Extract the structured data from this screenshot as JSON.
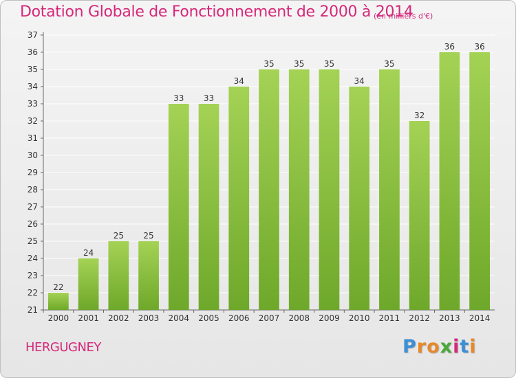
{
  "chart_data": {
    "type": "bar",
    "title": "Dotation Globale de Fonctionnement de 2000 à 2014",
    "subtitle": "(en milliers d'€)",
    "categories": [
      "2000",
      "2001",
      "2002",
      "2003",
      "2004",
      "2005",
      "2006",
      "2007",
      "2008",
      "2009",
      "2010",
      "2011",
      "2012",
      "2013",
      "2014"
    ],
    "values": [
      22,
      24,
      25,
      25,
      33,
      33,
      34,
      35,
      35,
      35,
      34,
      35,
      32,
      36,
      36
    ],
    "xlabel": "",
    "ylabel": "",
    "ylim": [
      21,
      37
    ],
    "yticks": [
      21,
      22,
      23,
      24,
      25,
      26,
      27,
      28,
      29,
      30,
      31,
      32,
      33,
      34,
      35,
      36,
      37
    ],
    "grid": true,
    "bar_color": "#8cc43c",
    "bar_color_light": "#a4d255",
    "bar_color_dark": "#6ea82a"
  },
  "place_name": "HERGUGNEY",
  "brand": {
    "name": "Proxiti",
    "letters": [
      "P",
      "r",
      "o",
      "x",
      "i",
      "t",
      "i"
    ],
    "colors": [
      "#3a8fd6",
      "#e6892a",
      "#e6892a",
      "#4aa83a",
      "#d6287a",
      "#3a8fd6",
      "#e6892a"
    ]
  },
  "colors": {
    "accent": "#d6287a",
    "grid": "#ffffff",
    "text": "#333333"
  }
}
